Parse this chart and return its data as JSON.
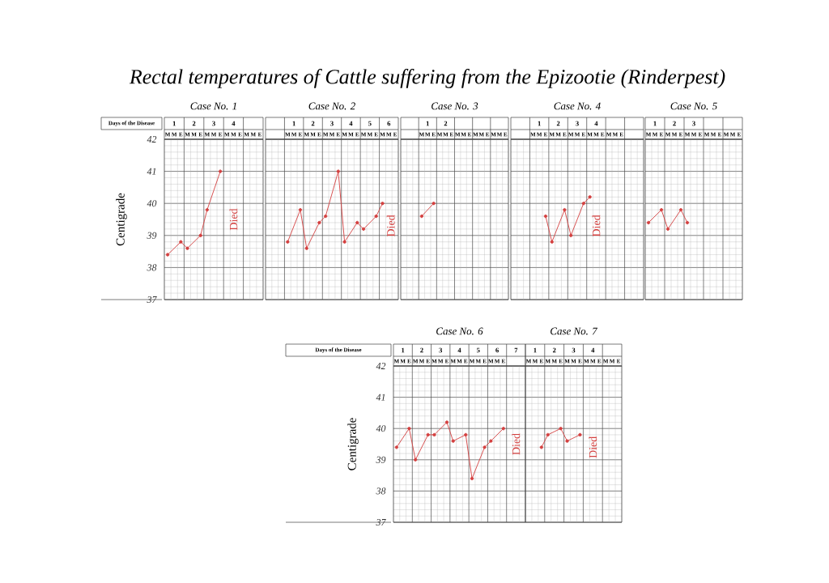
{
  "chart_data": [
    {
      "type": "line",
      "title": "Rectal temperatures of Cattle suffering from the Epizootie (Rinderpest)",
      "subtitle": "Case No. 1",
      "x2label": "Days of the Disease",
      "ylabel": "Centigrade",
      "categories": [
        "M",
        "M",
        "E",
        "M",
        "M",
        "E",
        "M",
        "M",
        "E",
        "M",
        "M",
        "E",
        "M",
        "M",
        "E"
      ],
      "values": [
        38.4,
        null,
        38.8,
        38.6,
        null,
        39.0,
        39.8,
        null,
        41.0,
        null,
        null,
        null,
        null,
        null,
        null
      ],
      "color": "#d4403f",
      "marker": "circle",
      "x2lim": [
        0.5,
        5.5
      ],
      "x2ticks": [
        1,
        2,
        3,
        4
      ],
      "ylim": [
        37,
        42
      ],
      "yticks": [
        37,
        38,
        39,
        40,
        41,
        42
      ],
      "grid": true,
      "annotations": [
        "Died"
      ]
    },
    {
      "type": "line",
      "subtitle": "Case No. 2",
      "categories": [
        null,
        null,
        null,
        "M",
        "M",
        "E",
        "M",
        "M",
        "E",
        "M",
        "M",
        "E",
        "M",
        "M",
        "E",
        "M",
        "M",
        "E",
        "M",
        "M",
        "E"
      ],
      "values": [
        null,
        null,
        null,
        38.8,
        null,
        39.8,
        38.6,
        null,
        39.4,
        39.6,
        null,
        41.0,
        38.8,
        null,
        39.4,
        39.2,
        null,
        39.6,
        40.0,
        null,
        null
      ],
      "color": "#d4403f",
      "marker": "circle",
      "x2lim": [
        -0.5,
        6.5
      ],
      "x2ticks": [
        1,
        2,
        3,
        4,
        5,
        6
      ],
      "ylim": [
        37,
        42
      ],
      "yticks": [
        37,
        38,
        39,
        40,
        41,
        42
      ],
      "tick_labels": "x",
      "grid": true,
      "annotations": [
        "Died"
      ]
    },
    {
      "type": "line",
      "subtitle": "Case No. 3",
      "categories": [
        null,
        null,
        null,
        "M",
        "M",
        "E",
        "M",
        "M",
        "E",
        "M",
        "M",
        "E",
        "M",
        "M",
        "E",
        "M",
        "M",
        "E"
      ],
      "values": [
        null,
        null,
        null,
        39.6,
        null,
        40.0,
        null,
        null,
        null,
        null,
        null,
        null,
        null,
        null,
        null,
        null,
        null,
        null
      ],
      "color": "#d4403f",
      "marker": "circle",
      "x2lim": [
        -0.5,
        5.5
      ],
      "x2ticks": [
        1,
        2
      ],
      "ylim": [
        37,
        42
      ],
      "yticks": [
        37,
        38,
        39,
        40,
        41,
        42
      ],
      "tick_labels": "x",
      "grid": true
    },
    {
      "type": "line",
      "subtitle": "Case No. 4",
      "categories": [
        null,
        null,
        null,
        "M",
        "M",
        "E",
        "M",
        "M",
        "E",
        "M",
        "M",
        "E",
        "M",
        "M",
        "E",
        "M",
        "M",
        "E",
        null,
        null,
        null
      ],
      "values": [
        null,
        null,
        null,
        null,
        null,
        39.6,
        38.8,
        null,
        39.8,
        39.0,
        null,
        40.0,
        40.2,
        null,
        null,
        null,
        null,
        null,
        null,
        null,
        null
      ],
      "color": "#d4403f",
      "marker": "circle",
      "x2lim": [
        -0.5,
        6.5
      ],
      "x2ticks": [
        1,
        2,
        3,
        4
      ],
      "ylim": [
        37,
        42
      ],
      "yticks": [
        37,
        38,
        39,
        40,
        41,
        42
      ],
      "tick_labels": "x",
      "grid": true,
      "annotations": [
        "Died"
      ]
    },
    {
      "type": "line",
      "subtitle": "Case No. 5",
      "categories": [
        "M",
        "M",
        "E",
        "M",
        "M",
        "E",
        "M",
        "M",
        "E",
        "M",
        "M",
        "E",
        "M",
        "M",
        "E"
      ],
      "values": [
        39.4,
        null,
        39.8,
        39.2,
        null,
        39.8,
        39.4,
        null,
        null,
        null,
        null,
        null,
        null,
        null,
        null
      ],
      "color": "#d4403f",
      "marker": "circle",
      "x2lim": [
        0.5,
        5.5
      ],
      "x2ticks": [
        1,
        2,
        3
      ],
      "ylim": [
        37,
        42
      ],
      "yticks": [
        37,
        38,
        39,
        40,
        41,
        42
      ],
      "tick_labels": "x",
      "grid": true
    },
    {
      "type": "line",
      "subtitle": "Case No. 6",
      "x2label": "Days of the Disease",
      "ylabel": "Centigrade",
      "categories": [
        "M",
        "M",
        "E",
        "M",
        "M",
        "E",
        "M",
        "M",
        "E",
        "M",
        "M",
        "E",
        "M",
        "M",
        "E",
        "M",
        "M",
        "E",
        null,
        null,
        null
      ],
      "values": [
        39.4,
        null,
        40.0,
        39.0,
        null,
        39.8,
        39.8,
        null,
        40.2,
        39.6,
        null,
        39.8,
        38.4,
        null,
        39.4,
        39.6,
        null,
        40.0,
        null,
        null,
        null
      ],
      "color": "#d4403f",
      "marker": "circle",
      "x2lim": [
        0.5,
        7.5
      ],
      "x2ticks": [
        1,
        2,
        3,
        4,
        5,
        6,
        7
      ],
      "ylim": [
        37,
        42
      ],
      "yticks": [
        37,
        38,
        39,
        40,
        41,
        42
      ],
      "grid": true,
      "annotations": [
        "Died"
      ]
    },
    {
      "type": "line",
      "subtitle": "Case No. 7",
      "categories": [
        "M",
        "M",
        "E",
        "M",
        "M",
        "E",
        "M",
        "M",
        "E",
        "M",
        "M",
        "E",
        "M",
        "M",
        "E"
      ],
      "values": [
        null,
        null,
        39.4,
        39.8,
        null,
        40.0,
        39.6,
        null,
        39.8,
        null,
        null,
        null,
        null,
        null,
        null
      ],
      "color": "#d4403f",
      "marker": "circle",
      "x2lim": [
        0.5,
        5.5
      ],
      "x2ticks": [
        1,
        2,
        3,
        4
      ],
      "ylim": [
        37,
        42
      ],
      "yticks": [
        37,
        38,
        39,
        40,
        41,
        42
      ],
      "tick_labels": "x",
      "grid": true,
      "annotations": [
        "Died"
      ]
    }
  ]
}
